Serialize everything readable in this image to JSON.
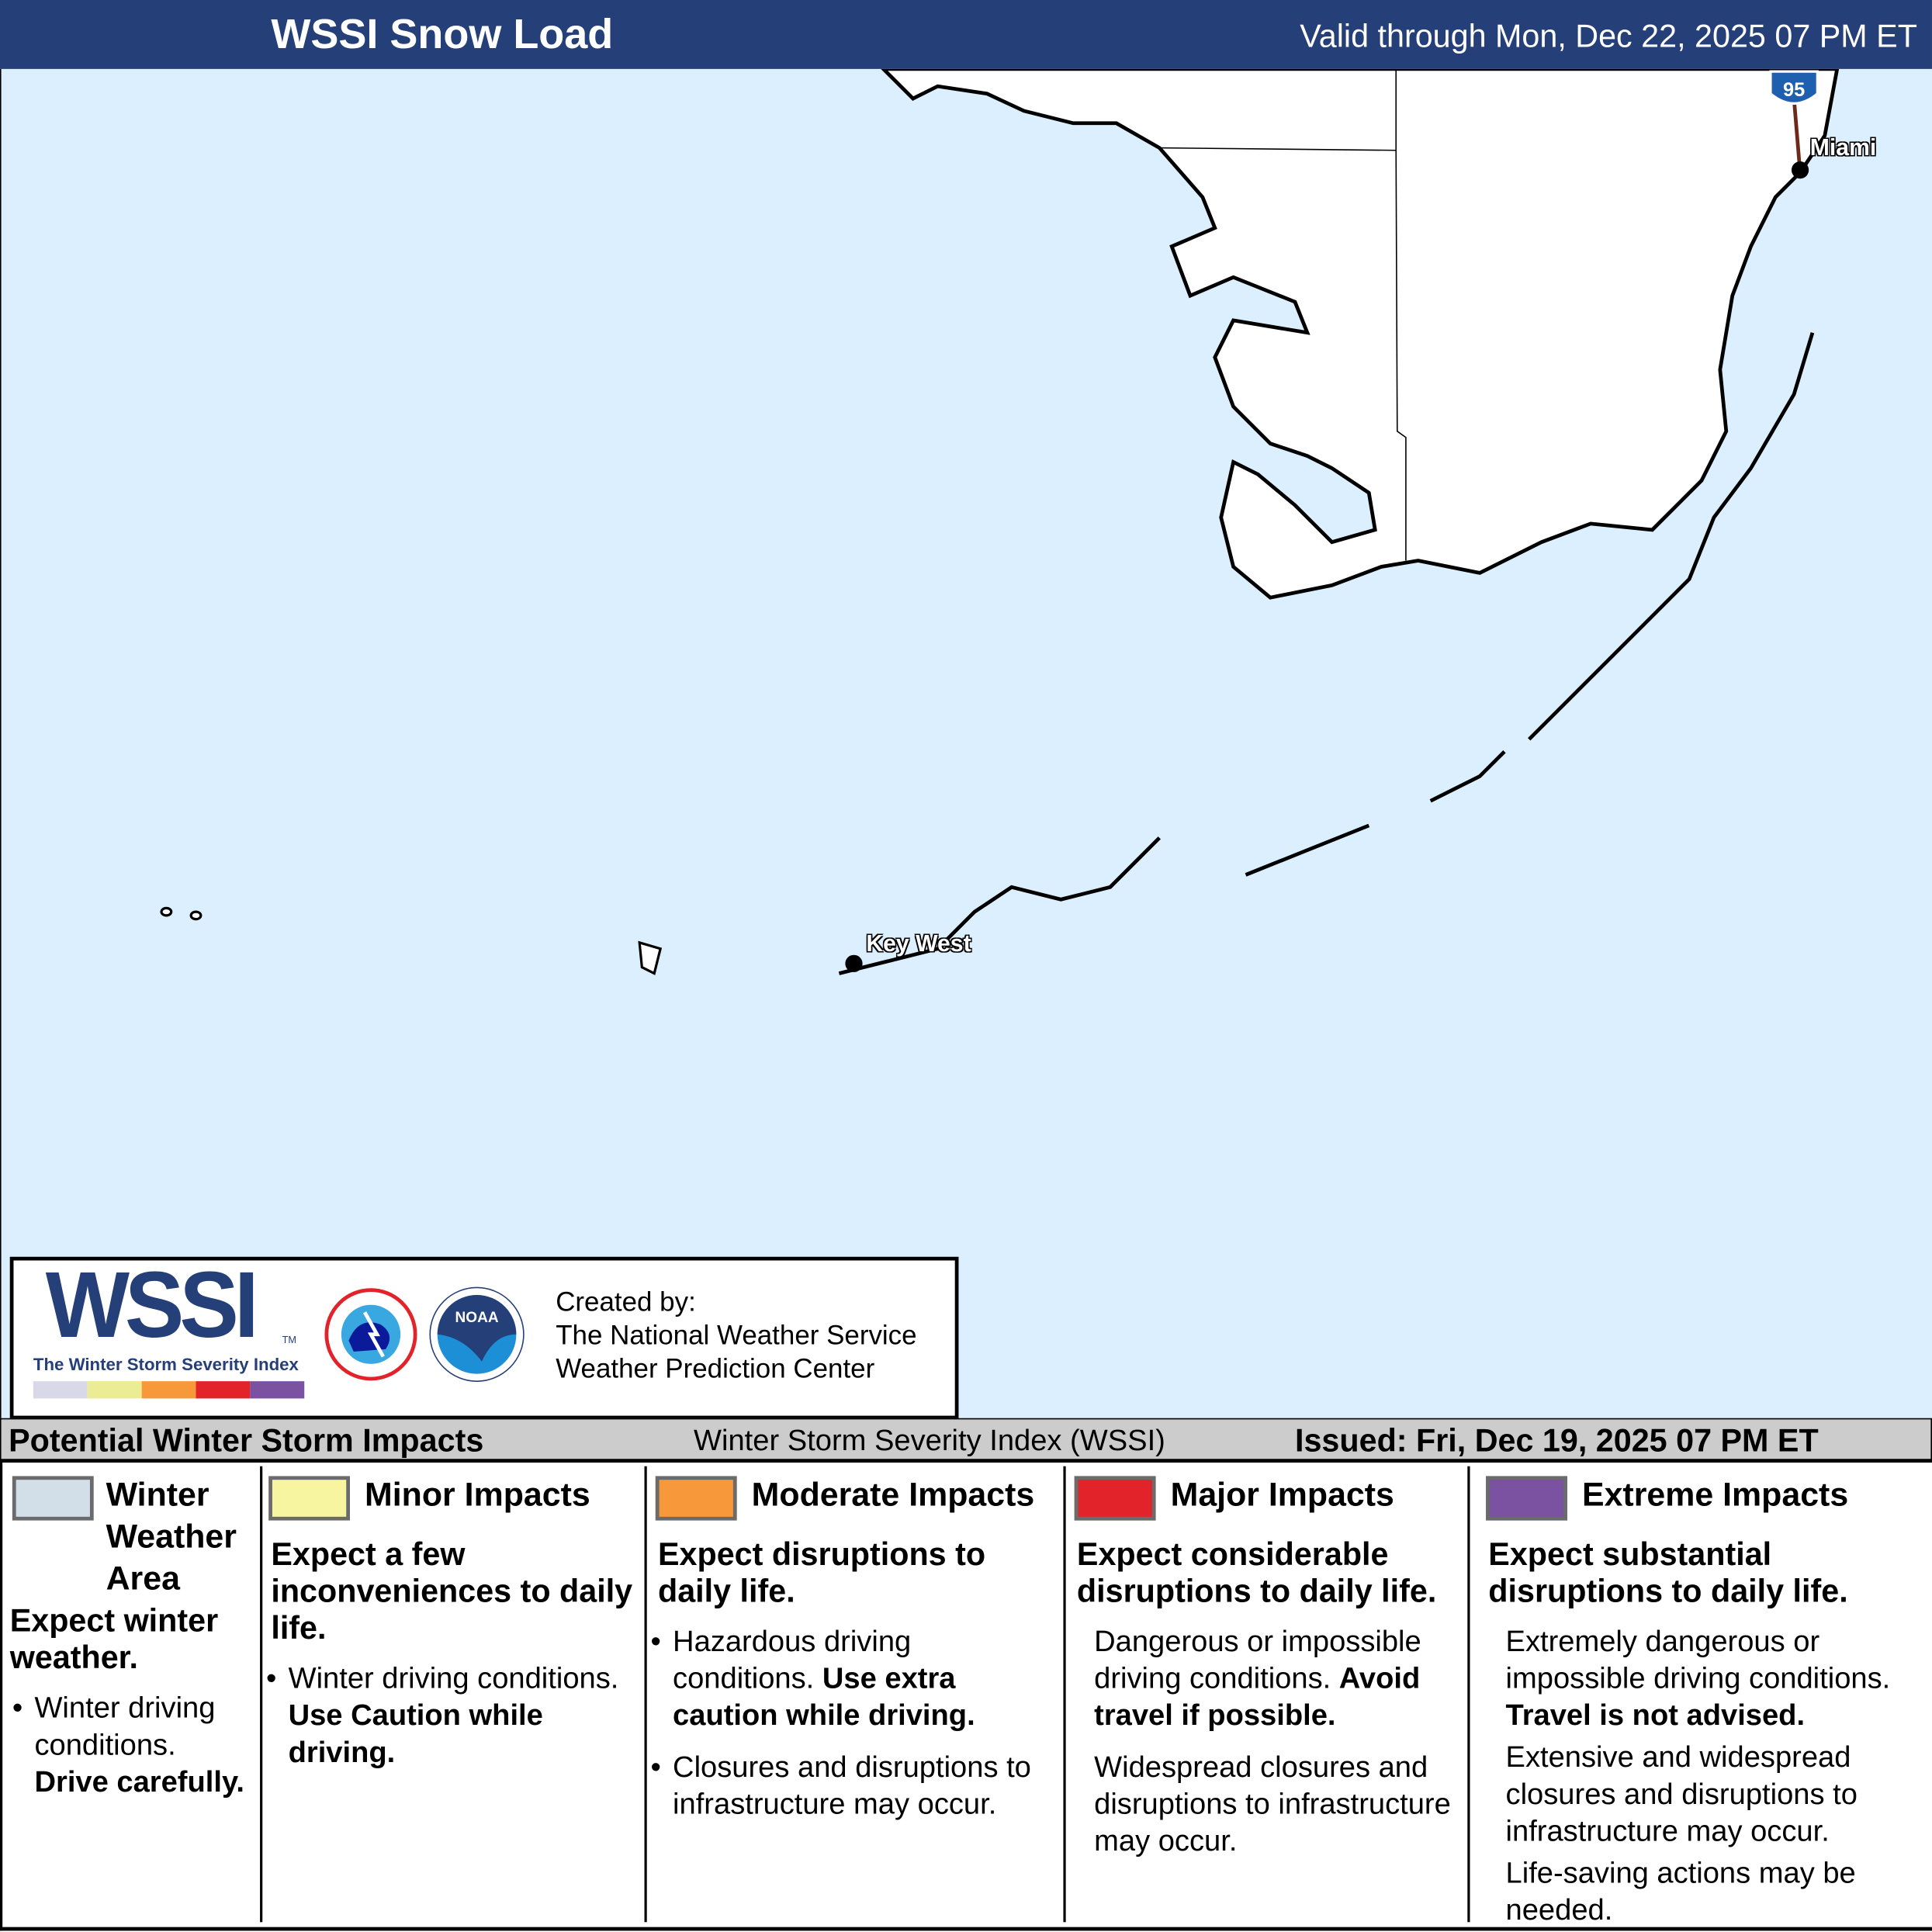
{
  "header": {
    "title": "WSSI Snow Load",
    "valid": "Valid through Mon, Dec 22, 2025 07 PM ET"
  },
  "map": {
    "cities": [
      "Miami",
      "Key West"
    ],
    "highway_shield": "95",
    "water_color": "#dcefff",
    "land_color": "#ffffff"
  },
  "logo": {
    "wssi": "WSSI",
    "tm": "TM",
    "subtitle": "The Winter Storm Severity Index",
    "nws_logo": "NATIONAL WEATHER SERVICE",
    "noaa_logo": "NOAA",
    "created_by": "Created by:",
    "org1": "The National Weather Service",
    "org2": "Weather Prediction Center",
    "bar_colors": [
      "#d8d8e8",
      "#ecec94",
      "#f7983a",
      "#e3232a",
      "#7b51a1"
    ]
  },
  "strip": {
    "left": "Potential Winter Storm Impacts",
    "center": "Winter Storm Severity Index (WSSI)",
    "right": "Issued: Fri, Dec 19, 2025 07 PM ET"
  },
  "legend": [
    {
      "color": "#d2dfe8",
      "title": "Winter Weather Area",
      "expect": "Expect winter weather.",
      "bullet": "Winter driving conditions.",
      "bold": "Drive carefully."
    },
    {
      "color": "#f8f5a0",
      "title": "Minor Impacts",
      "expect": "Expect a few inconveniences to daily life.",
      "bullet": "Winter driving conditions.",
      "bold": "Use Caution while driving."
    },
    {
      "color": "#f7983a",
      "title": "Moderate Impacts",
      "expect": "Expect disruptions to daily life.",
      "bullet": "Hazardous driving conditions.",
      "bold": "Use extra caution while driving.",
      "bullet2": "Closures and disruptions to infrastructure may occur."
    },
    {
      "color": "#e3232a",
      "title": "Major Impacts",
      "expect": "Expect considerable disruptions to daily life.",
      "bullet": "Dangerous or impossible driving conditions.",
      "bold": "Avoid travel if possible.",
      "bullet2": "Widespread closures and disruptions to infrastructure may occur."
    },
    {
      "color": "#7b51a1",
      "title": "Extreme Impacts",
      "expect": "Expect substantial disruptions to daily life.",
      "bullet": "Extremely dangerous or impossible driving conditions.",
      "bold": "Travel is not advised.",
      "bullet2": "Extensive and widespread closures and disruptions to infrastructure may occur.",
      "bullet3": "Life-saving actions may be needed."
    }
  ]
}
